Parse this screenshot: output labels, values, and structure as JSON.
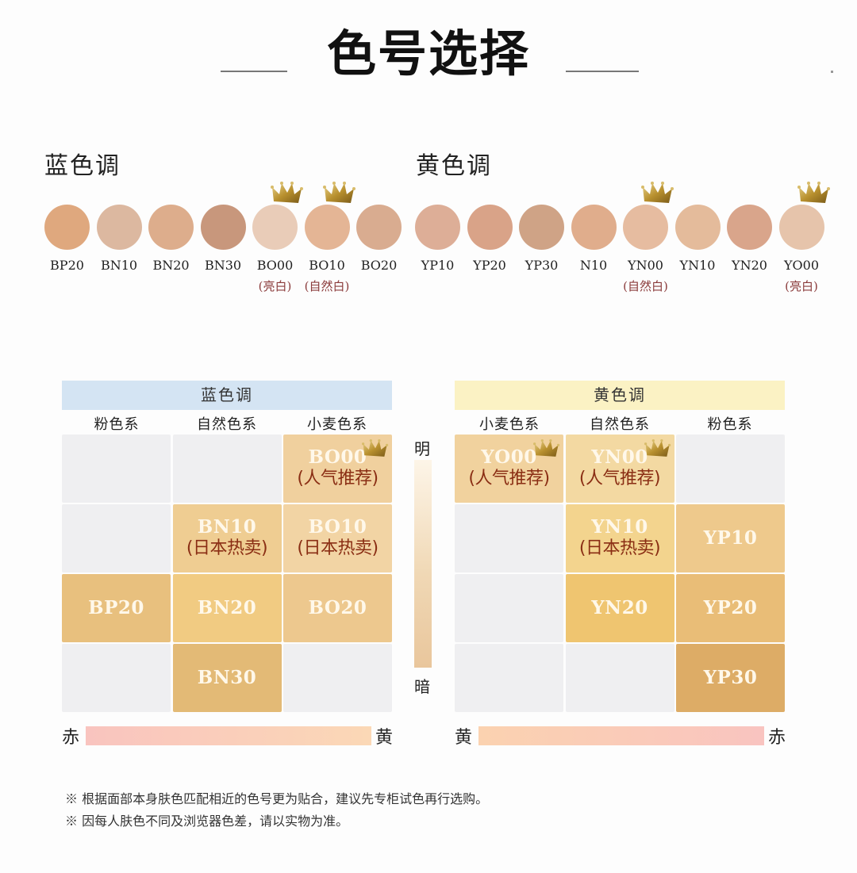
{
  "title": "色号选择",
  "swatches": {
    "blue": {
      "heading": "蓝色调",
      "items": [
        {
          "code": "BP20",
          "color": "#dfa87e",
          "note": "",
          "crown": false
        },
        {
          "code": "BN10",
          "color": "#dcb8a0",
          "note": "",
          "crown": false
        },
        {
          "code": "BN20",
          "color": "#ddad8c",
          "note": "",
          "crown": false
        },
        {
          "code": "BN30",
          "color": "#c8977c",
          "note": "",
          "crown": false
        },
        {
          "code": "BO00",
          "color": "#e9ccb8",
          "note": "(亮白)",
          "crown": true
        },
        {
          "code": "BO10",
          "color": "#e4b595",
          "note": "(自然白)",
          "crown": true
        },
        {
          "code": "BO20",
          "color": "#d9ac90",
          "note": "",
          "crown": false
        }
      ]
    },
    "yellow": {
      "heading": "黄色调",
      "items": [
        {
          "code": "YP10",
          "color": "#ddae97",
          "note": "",
          "crown": false
        },
        {
          "code": "YP20",
          "color": "#d9a388",
          "note": "",
          "crown": false
        },
        {
          "code": "YP30",
          "color": "#cfa386",
          "note": "",
          "crown": false
        },
        {
          "code": "N10",
          "color": "#e0ad8c",
          "note": "",
          "crown": false
        },
        {
          "code": "YN00",
          "color": "#e6bca0",
          "note": "(自然白)",
          "crown": true
        },
        {
          "code": "YN10",
          "color": "#e4bb9b",
          "note": "",
          "crown": false
        },
        {
          "code": "YN20",
          "color": "#d9a58b",
          "note": "",
          "crown": false
        },
        {
          "code": "YO00",
          "color": "#e6c4ab",
          "note": "(亮白)",
          "crown": true
        }
      ]
    }
  },
  "matrix": {
    "blue": {
      "header": "蓝色调",
      "header_color": "#d4e4f3",
      "columns": [
        "粉色系",
        "自然色系",
        "小麦色系"
      ],
      "cells": [
        {
          "row": 0,
          "col": 2,
          "code": "BO00",
          "tag": "(人气推荐)",
          "color": "#f0d09e",
          "crown": true
        },
        {
          "row": 1,
          "col": 1,
          "code": "BN10",
          "tag": "(日本热卖)",
          "color": "#efcd92",
          "crown": false
        },
        {
          "row": 1,
          "col": 2,
          "code": "BO10",
          "tag": "(日本热卖)",
          "color": "#f2d4a4",
          "crown": false
        },
        {
          "row": 2,
          "col": 0,
          "code": "BP20",
          "tag": "",
          "color": "#e8c07e",
          "crown": false
        },
        {
          "row": 2,
          "col": 1,
          "code": "BN20",
          "tag": "",
          "color": "#f1cb82",
          "crown": false
        },
        {
          "row": 2,
          "col": 2,
          "code": "BO20",
          "tag": "",
          "color": "#edc88e",
          "crown": false
        },
        {
          "row": 3,
          "col": 1,
          "code": "BN30",
          "tag": "",
          "color": "#e3ba76",
          "crown": false
        }
      ],
      "axis_left": "赤",
      "axis_right": "黄"
    },
    "yellow": {
      "header": "黄色调",
      "header_color": "#fbf2c4",
      "columns": [
        "小麦色系",
        "自然色系",
        "粉色系"
      ],
      "cells": [
        {
          "row": 0,
          "col": 0,
          "code": "YO00",
          "tag": "(人气推荐)",
          "color": "#f1d29e",
          "crown": true
        },
        {
          "row": 0,
          "col": 1,
          "code": "YN00",
          "tag": "(人气推荐)",
          "color": "#f3d9a2",
          "crown": true
        },
        {
          "row": 1,
          "col": 1,
          "code": "YN10",
          "tag": "(日本热卖)",
          "color": "#f3d48e",
          "crown": false
        },
        {
          "row": 1,
          "col": 2,
          "code": "YP10",
          "tag": "",
          "color": "#eec98c",
          "crown": false
        },
        {
          "row": 2,
          "col": 1,
          "code": "YN20",
          "tag": "",
          "color": "#efc570",
          "crown": false
        },
        {
          "row": 2,
          "col": 2,
          "code": "YP20",
          "tag": "",
          "color": "#e9bd77",
          "crown": false
        },
        {
          "row": 3,
          "col": 2,
          "code": "YP30",
          "tag": "",
          "color": "#ddac66",
          "crown": false
        }
      ],
      "axis_left": "黄",
      "axis_right": "赤"
    },
    "brightness_top": "明",
    "brightness_bottom": "暗"
  },
  "footnotes": [
    "※ 根据面部本身肤色匹配相近的色号更为贴合，建议先专柜试色再行选购。",
    "※ 因每人肤色不同及浏览器色差，请以实物为准。"
  ]
}
